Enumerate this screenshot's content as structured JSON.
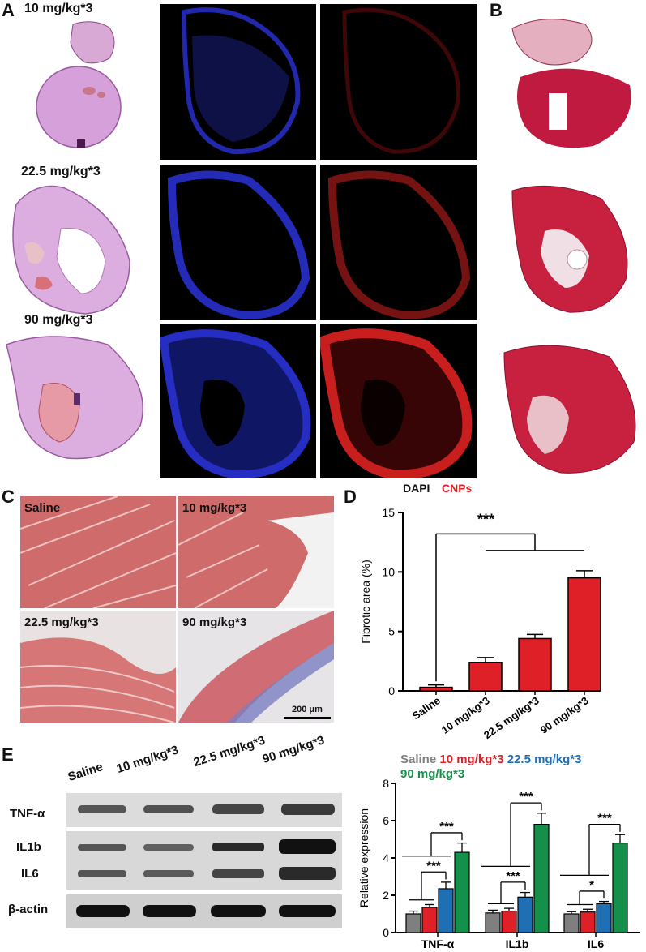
{
  "panels": {
    "A": "A",
    "B": "B",
    "C": "C",
    "D": "D",
    "E": "E"
  },
  "panel_a": {
    "doses": [
      "10 mg/kg*3",
      "22.5 mg/kg*3",
      "90 mg/kg*3"
    ],
    "legend_dapi": "DAPI",
    "legend_cnps": "CNPs"
  },
  "panel_c": {
    "labels": [
      "Saline",
      "10 mg/kg*3",
      "22.5 mg/kg*3",
      "90 mg/kg*3"
    ],
    "scale_bar": "200 μm"
  },
  "panel_e_blot": {
    "lanes": [
      "Saline",
      "10 mg/kg*3",
      "22.5 mg/kg*3",
      "90 mg/kg*3"
    ],
    "rows": [
      "TNF-α",
      "IL1b",
      "IL6",
      "β-actin"
    ]
  },
  "colors": {
    "saline": "#7f7f7f",
    "dose10": "#e02027",
    "dose22": "#1f6fb5",
    "dose90": "#15904a",
    "bar_d": "#e02027",
    "dapi": "#2a32d8",
    "cnps": "#e02027"
  },
  "chart_data": [
    {
      "type": "bar",
      "ylabel": "Fibrotic area (%)",
      "categories": [
        "Saline",
        "10 mg/kg*3",
        "22.5 mg/kg*3",
        "90 mg/kg*3"
      ],
      "values": [
        0.3,
        2.4,
        4.4,
        9.5
      ],
      "errors": [
        0.2,
        0.4,
        0.35,
        0.6
      ],
      "ylim": [
        0,
        15
      ],
      "yticks": [
        0,
        5,
        10,
        15
      ],
      "significance": "***"
    },
    {
      "type": "bar",
      "ylabel": "Relative expression",
      "categories": [
        "TNF-α",
        "IL1b",
        "IL6"
      ],
      "ylim": [
        0,
        8
      ],
      "yticks": [
        0,
        2,
        4,
        6,
        8
      ],
      "legend": [
        "Saline",
        "10 mg/kg*3",
        "22.5 mg/kg*3",
        "90 mg/kg*3"
      ],
      "series": [
        {
          "name": "Saline",
          "values": [
            1.0,
            1.05,
            1.0
          ],
          "errors": [
            0.15,
            0.15,
            0.12
          ]
        },
        {
          "name": "10 mg/kg*3",
          "values": [
            1.35,
            1.15,
            1.1
          ],
          "errors": [
            0.15,
            0.15,
            0.15
          ]
        },
        {
          "name": "22.5 mg/kg*3",
          "values": [
            2.35,
            1.9,
            1.55
          ],
          "errors": [
            0.35,
            0.25,
            0.12
          ]
        },
        {
          "name": "90 mg/kg*3",
          "values": [
            4.3,
            5.8,
            4.8
          ],
          "errors": [
            0.5,
            0.6,
            0.45
          ]
        }
      ],
      "significance": [
        "***",
        "***",
        "***",
        "***",
        "*",
        "***"
      ]
    }
  ]
}
